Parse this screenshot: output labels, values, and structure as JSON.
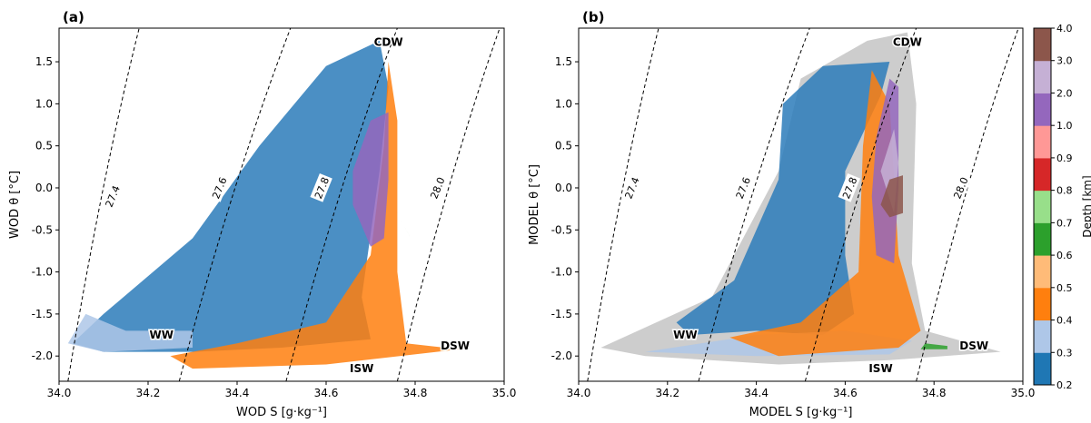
{
  "chart_data": [
    {
      "type": "scatter",
      "panel_label": "(a)",
      "xlabel": "WOD S [g·kg⁻¹]",
      "ylabel": "WOD θ [°C]",
      "xlim": [
        34.0,
        35.0
      ],
      "ylim": [
        -2.3,
        1.9
      ],
      "xticks": [
        "34.0",
        "34.2",
        "34.4",
        "34.6",
        "34.8",
        "35.0"
      ],
      "yticks": [
        "-2.0",
        "-1.5",
        "-1.0",
        "-0.5",
        "0.0",
        "0.5",
        "1.0",
        "1.5"
      ],
      "isopycnals": [
        {
          "label": "27.4",
          "s_bottom": 34.02,
          "s_top": 34.18,
          "label_s": 34.12,
          "label_t": -0.1
        },
        {
          "label": "27.6",
          "s_bottom": 34.27,
          "s_top": 34.52,
          "label_s": 34.36,
          "label_t": 0.0
        },
        {
          "label": "27.8",
          "s_bottom": 34.51,
          "s_top": 34.76,
          "label_s": 34.59,
          "label_t": 0.0
        },
        {
          "label": "28.0",
          "s_bottom": 34.76,
          "s_top": 34.99,
          "label_s": 34.85,
          "label_t": 0.0
        }
      ],
      "water_masses": [
        {
          "label": "CDW",
          "s": 34.74,
          "t": 1.73
        },
        {
          "label": "WW",
          "s": 34.23,
          "t": -1.75
        },
        {
          "label": "ISW",
          "s": 34.68,
          "t": -2.15
        },
        {
          "label": "DSW",
          "s": 34.89,
          "t": -1.88
        }
      ],
      "series_regions": [
        {
          "depth": "0.2",
          "color": "#2b7bba",
          "points": [
            [
              34.03,
              -1.85
            ],
            [
              34.1,
              -1.5
            ],
            [
              34.3,
              -0.6
            ],
            [
              34.45,
              0.5
            ],
            [
              34.6,
              1.45
            ],
            [
              34.72,
              1.75
            ],
            [
              34.74,
              1.2
            ],
            [
              34.72,
              0.2
            ],
            [
              34.68,
              -1.3
            ],
            [
              34.7,
              -1.8
            ],
            [
              34.5,
              -1.9
            ],
            [
              34.3,
              -1.95
            ],
            [
              34.1,
              -1.95
            ]
          ]
        },
        {
          "depth": "0.3",
          "color": "#aec7e8",
          "points": [
            [
              34.02,
              -1.85
            ],
            [
              34.06,
              -1.5
            ],
            [
              34.15,
              -1.7
            ],
            [
              34.3,
              -1.7
            ],
            [
              34.3,
              -1.9
            ],
            [
              34.1,
              -1.95
            ]
          ]
        },
        {
          "depth": "0.5",
          "color": "#ff7f0e",
          "points": [
            [
              34.25,
              -2.0
            ],
            [
              34.4,
              -1.85
            ],
            [
              34.6,
              -1.6
            ],
            [
              34.7,
              -0.8
            ],
            [
              34.73,
              0.5
            ],
            [
              34.74,
              1.5
            ],
            [
              34.76,
              0.8
            ],
            [
              34.76,
              -1.0
            ],
            [
              34.78,
              -1.85
            ],
            [
              34.9,
              -1.92
            ],
            [
              34.6,
              -2.1
            ],
            [
              34.3,
              -2.15
            ]
          ]
        },
        {
          "depth": "2.0",
          "color": "#9467bd",
          "points": [
            [
              34.66,
              0.2
            ],
            [
              34.7,
              0.8
            ],
            [
              34.74,
              0.9
            ],
            [
              34.74,
              0.1
            ],
            [
              34.73,
              -0.6
            ],
            [
              34.7,
              -0.7
            ],
            [
              34.66,
              -0.2
            ]
          ]
        },
        {
          "depth": "0.7",
          "color": "#2ca02c",
          "points": [
            [
              34.74,
              -0.1
            ],
            [
              34.76,
              -0.3
            ],
            [
              34.79,
              -0.6
            ],
            [
              34.78,
              -0.5
            ],
            [
              34.75,
              -0.2
            ]
          ]
        }
      ]
    },
    {
      "type": "scatter",
      "panel_label": "(b)",
      "xlabel": "MODEL S [g·kg⁻¹]",
      "ylabel": "MODEL θ [°C]",
      "xlim": [
        34.0,
        35.0
      ],
      "ylim": [
        -2.3,
        1.9
      ],
      "xticks": [
        "34.0",
        "34.2",
        "34.4",
        "34.6",
        "34.8",
        "35.0"
      ],
      "yticks": [
        "-2.0",
        "-1.5",
        "-1.0",
        "-0.5",
        "0.0",
        "0.5",
        "1.0",
        "1.5"
      ],
      "isopycnals": [
        {
          "label": "27.4",
          "s_bottom": 34.02,
          "s_top": 34.18,
          "label_s": 34.12,
          "label_t": 0.0
        },
        {
          "label": "27.6",
          "s_bottom": 34.27,
          "s_top": 34.52,
          "label_s": 34.37,
          "label_t": 0.0
        },
        {
          "label": "27.8",
          "s_bottom": 34.51,
          "s_top": 34.76,
          "label_s": 34.61,
          "label_t": 0.0
        },
        {
          "label": "28.0",
          "s_bottom": 34.76,
          "s_top": 34.99,
          "label_s": 34.86,
          "label_t": 0.0
        }
      ],
      "water_masses": [
        {
          "label": "CDW",
          "s": 34.74,
          "t": 1.73
        },
        {
          "label": "WW",
          "s": 34.24,
          "t": -1.75
        },
        {
          "label": "ISW",
          "s": 34.68,
          "t": -2.15
        },
        {
          "label": "DSW",
          "s": 34.89,
          "t": -1.88
        }
      ],
      "series_regions": [
        {
          "depth": "background",
          "color": "#c8c8c8",
          "points": [
            [
              34.05,
              -1.9
            ],
            [
              34.3,
              -1.3
            ],
            [
              34.45,
              0.2
            ],
            [
              34.5,
              1.3
            ],
            [
              34.65,
              1.75
            ],
            [
              34.74,
              1.85
            ],
            [
              34.76,
              1.0
            ],
            [
              34.75,
              -0.9
            ],
            [
              34.78,
              -1.7
            ],
            [
              34.95,
              -1.95
            ],
            [
              34.7,
              -2.05
            ],
            [
              34.45,
              -2.1
            ],
            [
              34.15,
              -2.0
            ]
          ]
        },
        {
          "depth": "0.2",
          "color": "#2b7bba",
          "points": [
            [
              34.22,
              -1.6
            ],
            [
              34.35,
              -1.1
            ],
            [
              34.45,
              0.1
            ],
            [
              34.46,
              1.0
            ],
            [
              34.55,
              1.45
            ],
            [
              34.7,
              1.5
            ],
            [
              34.68,
              1.1
            ],
            [
              34.6,
              0.2
            ],
            [
              34.6,
              -0.8
            ],
            [
              34.62,
              -1.5
            ],
            [
              34.55,
              -1.75
            ],
            [
              34.4,
              -1.7
            ],
            [
              34.25,
              -1.75
            ]
          ]
        },
        {
          "depth": "0.3",
          "color": "#aec7e8",
          "points": [
            [
              34.15,
              -1.95
            ],
            [
              34.4,
              -1.75
            ],
            [
              34.6,
              -1.7
            ],
            [
              34.75,
              -1.82
            ],
            [
              34.7,
              -1.98
            ],
            [
              34.4,
              -2.0
            ]
          ]
        },
        {
          "depth": "0.5",
          "color": "#ff7f0e",
          "points": [
            [
              34.34,
              -1.78
            ],
            [
              34.5,
              -1.6
            ],
            [
              34.63,
              -1.0
            ],
            [
              34.64,
              0.5
            ],
            [
              34.66,
              1.4
            ],
            [
              34.7,
              1.0
            ],
            [
              34.72,
              -0.8
            ],
            [
              34.77,
              -1.7
            ],
            [
              34.72,
              -1.9
            ],
            [
              34.45,
              -2.0
            ]
          ]
        },
        {
          "depth": "2.0",
          "color": "#9467bd",
          "points": [
            [
              34.67,
              0.6
            ],
            [
              34.7,
              1.3
            ],
            [
              34.72,
              1.2
            ],
            [
              34.72,
              0.0
            ],
            [
              34.71,
              -0.9
            ],
            [
              34.67,
              -0.8
            ],
            [
              34.66,
              -0.1
            ]
          ]
        },
        {
          "depth": "3.0",
          "color": "#c5b0d5",
          "points": [
            [
              34.68,
              0.2
            ],
            [
              34.71,
              0.7
            ],
            [
              34.72,
              0.3
            ],
            [
              34.71,
              -0.3
            ]
          ]
        },
        {
          "depth": "4.0",
          "color": "#8c564b",
          "points": [
            [
              34.68,
              -0.2
            ],
            [
              34.7,
              0.1
            ],
            [
              34.73,
              0.15
            ],
            [
              34.73,
              -0.3
            ],
            [
              34.7,
              -0.35
            ]
          ]
        },
        {
          "depth": "0.7",
          "color": "#2ca02c",
          "points": [
            [
              34.78,
              -1.85
            ],
            [
              34.83,
              -1.88
            ],
            [
              34.83,
              -1.92
            ],
            [
              34.77,
              -1.92
            ]
          ]
        }
      ],
      "colorbar": {
        "label": "Depth [km]",
        "levels": [
          "0.2",
          "0.3",
          "0.4",
          "0.5",
          "0.6",
          "0.7",
          "0.8",
          "0.9",
          "1.0",
          "2.0",
          "3.0",
          "4.0"
        ],
        "colors": [
          "#1f77b4",
          "#aec7e8",
          "#ff7f0e",
          "#ffbb78",
          "#2ca02c",
          "#98df8a",
          "#d62728",
          "#ff9896",
          "#9467bd",
          "#c5b0d5",
          "#8c564b"
        ]
      }
    }
  ]
}
